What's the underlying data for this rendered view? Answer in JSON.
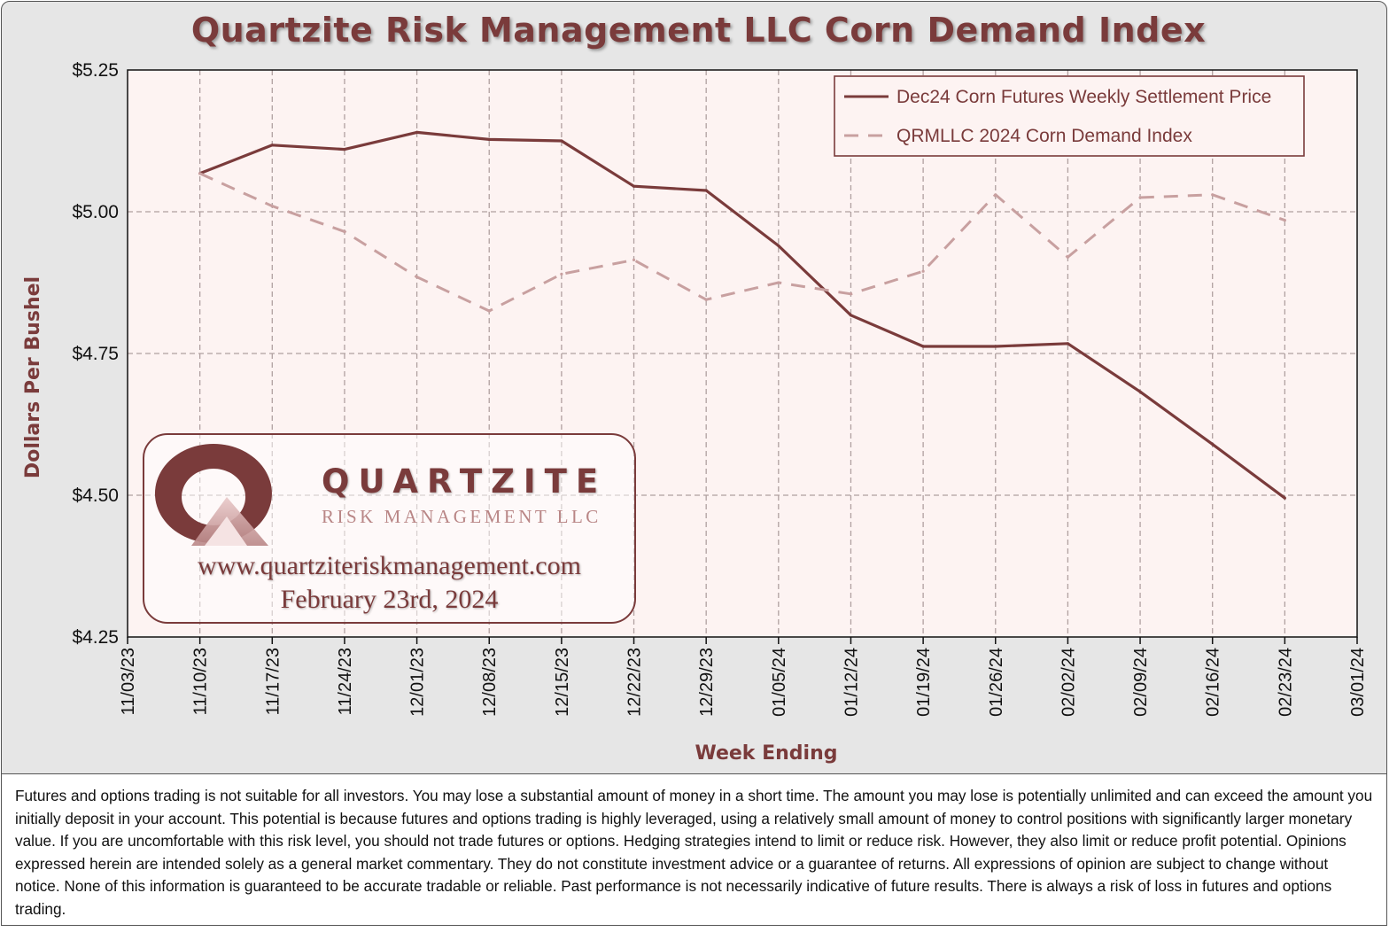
{
  "chart_data": {
    "type": "line",
    "title": "Quartzite Risk Management LLC Corn Demand Index",
    "xlabel": "Week Ending",
    "ylabel": "Dollars Per Bushel",
    "x": [
      "11/03/23",
      "11/10/23",
      "11/17/23",
      "11/24/23",
      "12/01/23",
      "12/08/23",
      "12/15/23",
      "12/22/23",
      "12/29/23",
      "01/05/24",
      "01/12/24",
      "01/19/24",
      "01/26/24",
      "02/02/24",
      "02/09/24",
      "02/16/24",
      "02/23/24",
      "03/01/24"
    ],
    "yticks": [
      "$5.25",
      "$5.00",
      "$4.75",
      "$4.50",
      "$4.25"
    ],
    "ylim": [
      4.25,
      5.25
    ],
    "grid": true,
    "legend_position": "top-right",
    "series": [
      {
        "name": "Dec24 Corn Futures Weekly Settlement Price",
        "style": "solid",
        "color": "#7a3b3b",
        "values": [
          null,
          5.0675,
          5.1175,
          5.11,
          5.14,
          5.1275,
          5.125,
          5.045,
          5.0375,
          4.94,
          4.8175,
          4.7625,
          4.7625,
          4.7675,
          4.6825,
          4.59,
          4.495,
          null
        ]
      },
      {
        "name": "QRMLLC 2024 Corn Demand Index",
        "style": "dashed",
        "color": "#c8a0a0",
        "values": [
          null,
          5.0675,
          5.01,
          4.965,
          4.885,
          4.825,
          4.89,
          4.915,
          4.845,
          4.875,
          4.855,
          4.895,
          5.03,
          4.92,
          5.025,
          5.03,
          4.985,
          null
        ]
      }
    ]
  },
  "logo": {
    "name": "QUARTZITE",
    "subtitle": "RISK MANAGEMENT LLC",
    "url": "www.quartziteriskmanagement.com",
    "date": "February 23rd, 2024"
  },
  "disclaimer": "Futures and options trading is not suitable for all investors. You may lose a substantial amount of money in a short time. The amount you may lose is potentially unlimited and can exceed the amount you initially deposit in your account. This potential is because futures and options trading is highly leveraged, using a relatively small amount of money to control positions with significantly larger monetary value. If you are uncomfortable with this risk level, you should not trade futures or options. Hedging strategies intend to limit or reduce risk. However, they also limit or reduce profit potential. Opinions expressed herein are intended solely as a general market commentary. They do not constitute investment advice or a guarantee of returns. All expressions of opinion are subject to change without notice. None of this information is guaranteed to be accurate tradable or reliable. Past performance is not necessarily indicative of future results. There is always a risk of loss in futures and options trading.",
  "colors": {
    "brand": "#7a3b3b",
    "index_line": "#c8a0a0",
    "plot_bg": "#fdf3f2",
    "panel_bg": "#e6e6e6"
  }
}
